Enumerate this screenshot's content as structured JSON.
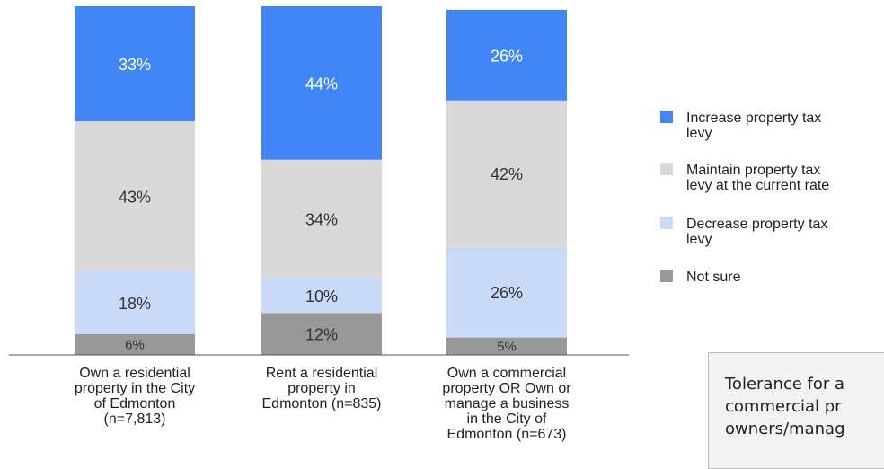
{
  "chart_data": {
    "type": "stacked-bar",
    "categories": [
      "Own a residential\nproperty in the City\nof Edmonton\n(n=7,813)",
      "Rent a residential\nproperty in\nEdmonton (n=835)",
      "Own a commercial\nproperty OR Own or\nmanage a business\nin the City of\nEdmonton (n=673)"
    ],
    "series": [
      {
        "name": "Not sure",
        "color": "#999999",
        "label_color": "#333333",
        "values": [
          6,
          12,
          5
        ],
        "value_labels": [
          "6%",
          "12%",
          "5%"
        ]
      },
      {
        "name": "Decrease property tax\nlevy",
        "color": "#c9daf8",
        "label_color": "#333333",
        "values": [
          18,
          10,
          26
        ],
        "value_labels": [
          "18%",
          "10%",
          "26%"
        ]
      },
      {
        "name": "Maintain property tax\nlevy at the current rate",
        "color": "#d9d9d9",
        "label_color": "#333333",
        "values": [
          43,
          34,
          42
        ],
        "value_labels": [
          "43%",
          "34%",
          "42%"
        ]
      },
      {
        "name": "Increase property tax\nlevy",
        "color": "#4285f4",
        "label_color": "#ffffff",
        "values": [
          33,
          44,
          26
        ],
        "value_labels": [
          "33%",
          "44%",
          "26%"
        ]
      }
    ],
    "legend_order": [
      3,
      2,
      1,
      0
    ],
    "ylim": [
      0,
      100
    ]
  },
  "note": {
    "lines": [
      "Tolerance for a",
      "commercial pr",
      "owners/manag"
    ]
  }
}
